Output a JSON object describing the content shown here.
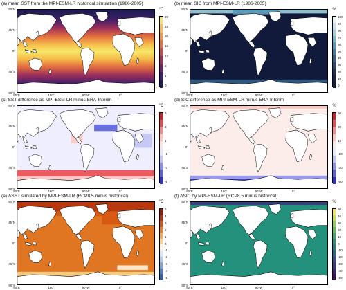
{
  "panels": [
    {
      "id": "a",
      "title": "(a) mean SST from the MPI-ESM-LR historical simulation (1986-2005)",
      "unit": "°C",
      "ticks": [
        "28",
        "24",
        "20",
        "16",
        "12",
        "8",
        "4",
        "0"
      ],
      "colors": [
        "#f6e86a",
        "#f7c04c",
        "#f09a3f",
        "#e3703f",
        "#c9484a",
        "#9e2f5b",
        "#6d2467",
        "#3f1f68",
        "#1a1c4e"
      ],
      "map": {
        "ocean": "sst",
        "land": "#ffffff"
      }
    },
    {
      "id": "b",
      "title": "(b) mean SIC from MPI-ESM-LR (1986-2005)",
      "unit": "%",
      "ticks": [
        "100",
        "90",
        "80",
        "70",
        "60",
        "50",
        "40",
        "30",
        "20",
        "10",
        "0"
      ],
      "colors": [
        "#e8f3f6",
        "#c4e1ea",
        "#9fcfdc",
        "#78b6cc",
        "#5997b7",
        "#41799f",
        "#335e86",
        "#29476d",
        "#213355",
        "#1b2444",
        "#131a35"
      ],
      "map": {
        "ocean": "#111a3a",
        "land": "#ffffff"
      }
    },
    {
      "id": "c",
      "title": "(c) SST difference as MPI-ESM-LR minus ERA-Interim",
      "unit": "°C",
      "ticks": [
        "5",
        "3",
        "1",
        "-1",
        "-3",
        "-5"
      ],
      "colors": [
        "#d11d29",
        "#ea4a4e",
        "#f58b88",
        "#fcc6c1",
        "#fbe6e4",
        "#e6e6fb",
        "#c2c4f4",
        "#8d91e9",
        "#5a5fdc",
        "#2c32c4"
      ],
      "map": {
        "ocean": "#eeeeff",
        "land": "#ffffff"
      }
    },
    {
      "id": "d",
      "title": "(d) SIC difference as MPI-ESM-LR minus ERA-Interim",
      "unit": "%",
      "ticks": [
        "50",
        "30",
        "10",
        "-10",
        "-30",
        "-50"
      ],
      "colors": [
        "#d11d29",
        "#ea4a4e",
        "#f58b88",
        "#fcc6c1",
        "#fcebe9",
        "#e8e8fc",
        "#c2c4f4",
        "#8d91e9",
        "#5a5fdc",
        "#2c32c4"
      ],
      "map": {
        "ocean": "#fcecea",
        "land": "#ffffff"
      }
    },
    {
      "id": "e",
      "title": "(e) ΔSST simulated by MPI-ESM-LR (RCP8.5 minus historical)",
      "unit": "°C",
      "ticks": [
        "5",
        "4",
        "3",
        "2",
        "1",
        "0",
        "-1",
        "-2",
        "-3",
        "-4",
        "-5"
      ],
      "colors": [
        "#8e1b10",
        "#b6320d",
        "#d7570f",
        "#e88124",
        "#f2ac4f",
        "#f8d58b",
        "#fdf3d8",
        "#dce6f3",
        "#aecce6",
        "#7aa9d4",
        "#4e86c1",
        "#2b63a8"
      ],
      "map": {
        "ocean": "#e07621",
        "land": "#ffffff"
      }
    },
    {
      "id": "f",
      "title": "(f) ΔSIC by MPI-ESM-LR (RCP8.5 minus historical)",
      "unit": "%",
      "ticks": [
        "50",
        "40",
        "30",
        "20",
        "10",
        "0",
        "-10",
        "-20",
        "-30",
        "-40",
        "-50"
      ],
      "colors": [
        "#f6e74a",
        "#c9dc43",
        "#96cc4b",
        "#64bb5a",
        "#3ea76b",
        "#27917a",
        "#247b83",
        "#2a6586",
        "#314f85",
        "#3a397c",
        "#40236a",
        "#3a0f55"
      ],
      "map": {
        "ocean": "#24917c",
        "land": "#ffffff"
      }
    }
  ],
  "lat_labels": [
    "90°N",
    "45°N",
    "0°",
    "45°S",
    "90°S"
  ],
  "lon_labels": [
    "90°E",
    "180°",
    "90°W",
    "0°"
  ]
}
